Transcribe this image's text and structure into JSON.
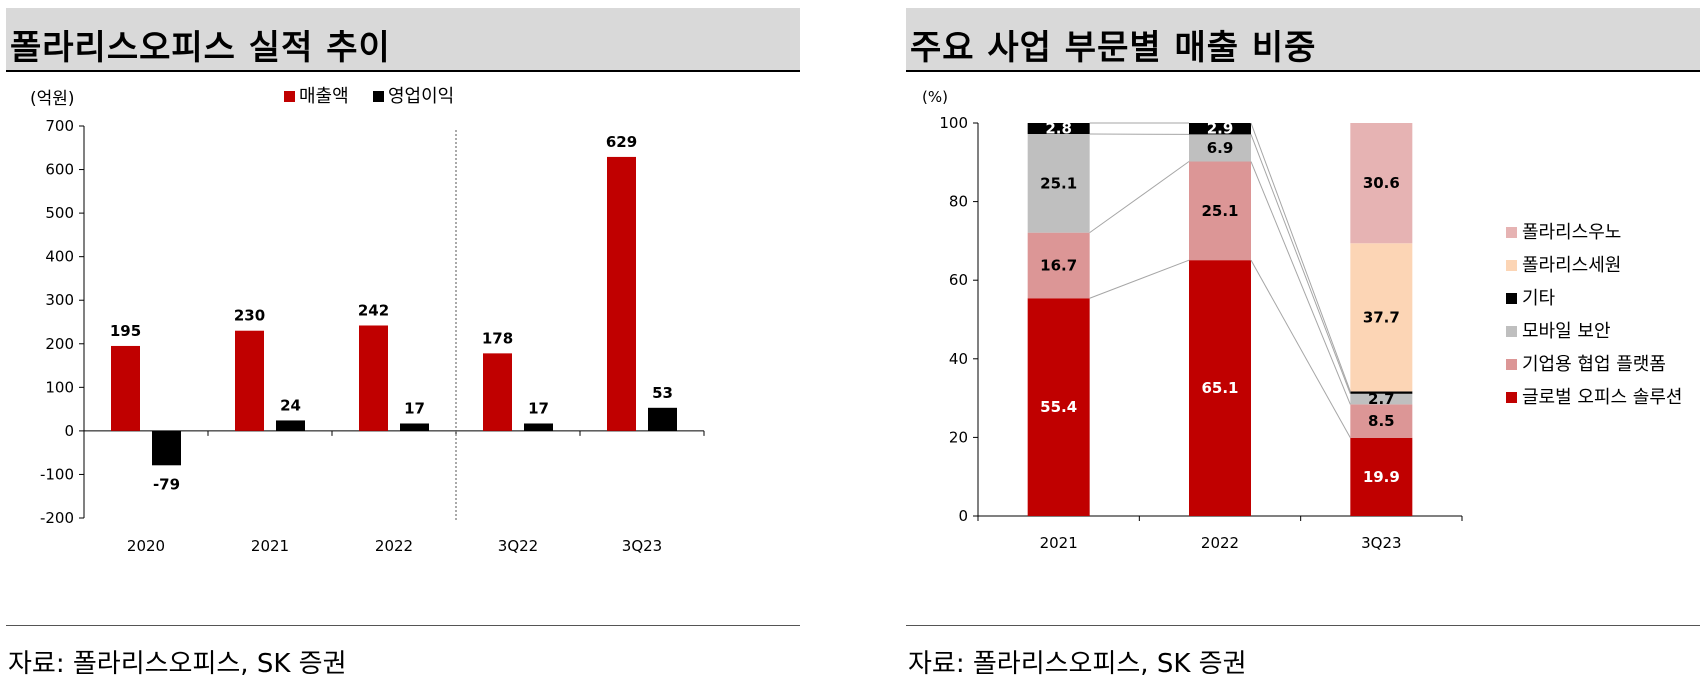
{
  "left": {
    "title": "폴라리스오피스 실적 추이",
    "source": "자료: 폴라리스오피스, SK 증권",
    "chart_data": {
      "type": "bar",
      "unit_label": "(억원)",
      "categories": [
        "2020",
        "2021",
        "2022",
        "3Q22",
        "3Q23"
      ],
      "series": [
        {
          "name": "매출액",
          "values": [
            195,
            230,
            242,
            178,
            629
          ],
          "color": "#c00000"
        },
        {
          "name": "영업이익",
          "values": [
            -79,
            24,
            17,
            17,
            53
          ],
          "color": "#000000"
        }
      ],
      "ylim": [
        -200,
        700
      ],
      "yticks": [
        700,
        600,
        500,
        400,
        300,
        200,
        100,
        0,
        -100,
        -200
      ],
      "legend_position": "top",
      "grid": false
    }
  },
  "right": {
    "title": "주요 사업 부문별 매출 비중",
    "source": "자료: 폴라리스오피스, SK 증권",
    "chart_data": {
      "type": "bar",
      "stacked": true,
      "unit_label": "(%)",
      "categories": [
        "2021",
        "2022",
        "3Q23"
      ],
      "series": [
        {
          "name": "글로벌 오피스 솔루션",
          "values": [
            55.4,
            65.1,
            19.9
          ],
          "color": "#c00000",
          "label_color": "#ffffff"
        },
        {
          "name": "기업용 협업 플랫폼",
          "values": [
            16.7,
            25.1,
            8.5
          ],
          "color": "#dc9696",
          "label_color": "#000000"
        },
        {
          "name": "모바일 보안",
          "values": [
            25.1,
            6.9,
            2.7
          ],
          "color": "#bfbfbf",
          "label_color": "#000000"
        },
        {
          "name": "기타",
          "values": [
            2.8,
            2.9,
            0.6
          ],
          "color": "#000000",
          "label_color": "#ffffff"
        },
        {
          "name": "폴라리스세원",
          "values": [
            0,
            0,
            37.7
          ],
          "color": "#fcd5b5",
          "label_color": "#000000"
        },
        {
          "name": "폴라리스우노",
          "values": [
            0,
            0,
            30.6
          ],
          "color": "#e6b3b3",
          "label_color": "#000000"
        }
      ],
      "data_labels": [
        [
          "55.4",
          "65.1",
          "19.9"
        ],
        [
          "16.7",
          "25.1",
          "8.5"
        ],
        [
          "25.1",
          "6.9",
          "2.7"
        ],
        [
          "2.8",
          "2.9",
          ""
        ],
        [
          "",
          "",
          "37.7"
        ],
        [
          "",
          "",
          "30.6"
        ]
      ],
      "legend_order": [
        "폴라리스우노",
        "폴라리스세원",
        "기타",
        "모바일 보안",
        "기업용 협업 플랫폼",
        "글로벌 오피스 솔루션"
      ],
      "ylim": [
        0,
        100
      ],
      "yticks": [
        100,
        80,
        60,
        40,
        20,
        0
      ],
      "legend_position": "right",
      "series_lines": true,
      "grid": false
    }
  }
}
